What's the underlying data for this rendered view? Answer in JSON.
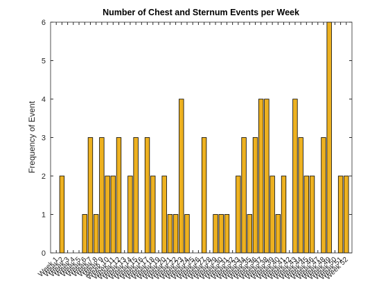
{
  "chart_data": {
    "type": "bar",
    "title": "Number of Chest and Sternum Events per Week",
    "y_label": "Frequency of Event",
    "categories": [
      "Week 1",
      "Week 2",
      "Week 3",
      "Week 4",
      "Week 5",
      "Week 6",
      "Week 7",
      "Week 8",
      "Week 9",
      "Week 10",
      "Week 11",
      "Week 12",
      "Week 13",
      "Week 14",
      "Week 15",
      "Week 16",
      "Week 17",
      "Week 18",
      "Week 19",
      "Week 20",
      "Week 21",
      "Week 22",
      "Week 23",
      "Week 24",
      "Week 25",
      "Week 26",
      "Week 27",
      "Week 28",
      "Week 29",
      "Week 30",
      "Week 31",
      "Week 32",
      "Week 33",
      "Week 34",
      "Week 35",
      "Week 36",
      "Week 37",
      "Week 38",
      "Week 39",
      "Week 40",
      "Week 41",
      "Week 42",
      "Week 43",
      "Week 44",
      "Week 45",
      "Week 46",
      "Week 47",
      "Week 48",
      "Week 49",
      "Week 50",
      "Week 51",
      "Week 52"
    ],
    "values": [
      0,
      2,
      0,
      0,
      0,
      1,
      3,
      1,
      3,
      2,
      2,
      3,
      0,
      2,
      3,
      0,
      3,
      2,
      0,
      2,
      1,
      1,
      4,
      1,
      0,
      0,
      3,
      0,
      1,
      1,
      1,
      0,
      2,
      3,
      1,
      3,
      4,
      4,
      2,
      1,
      2,
      0,
      4,
      3,
      2,
      2,
      0,
      3,
      6,
      0,
      2,
      2
    ],
    "color": "#edb120",
    "ylim": [
      0,
      6
    ],
    "yticks": [
      0,
      1,
      2,
      3,
      4,
      5,
      6
    ],
    "grid": false
  }
}
